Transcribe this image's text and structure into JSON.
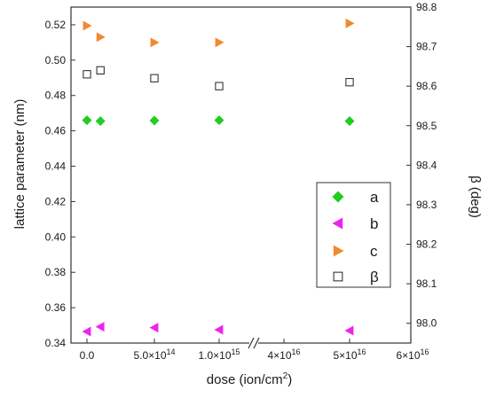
{
  "chart_data": {
    "type": "scatter",
    "xlabel": "dose (ion/cm",
    "xlabel_sup": "2",
    "xlabel_suffix": ")",
    "ylabel_left": "lattice parameter (nm)",
    "ylabel_right": "β (deg)",
    "x_ticks": [
      {
        "pos": 0,
        "label": "0.0"
      },
      {
        "pos": 1,
        "label": "5.0×10",
        "sup": "14"
      },
      {
        "pos": 2,
        "label": "1.0×10",
        "sup": "15"
      },
      {
        "pos": 3,
        "label": "4×10",
        "sup": "16"
      },
      {
        "pos": 4,
        "label": "5×10",
        "sup": "16"
      },
      {
        "pos": 5,
        "label": "6×10",
        "sup": "16"
      }
    ],
    "x_axis_break": true,
    "ylim_left": [
      0.34,
      0.53
    ],
    "yticks_left": [
      "0.34",
      "0.36",
      "0.38",
      "0.40",
      "0.42",
      "0.44",
      "0.46",
      "0.48",
      "0.50",
      "0.52"
    ],
    "ylim_right": [
      97.95,
      98.8
    ],
    "yticks_right": [
      "98.0",
      "98.1",
      "98.2",
      "98.3",
      "98.4",
      "98.5",
      "98.6",
      "98.7",
      "98.8"
    ],
    "series": [
      {
        "name": "a",
        "axis": "left",
        "marker": "diamond",
        "color": "#22cc22",
        "points": [
          [
            0,
            0.466
          ],
          [
            0.2,
            0.4655
          ],
          [
            1,
            0.4658
          ],
          [
            2,
            0.466
          ],
          [
            4,
            0.4655
          ]
        ]
      },
      {
        "name": "b",
        "axis": "left",
        "marker": "triangle-left",
        "color": "#ee22ee",
        "points": [
          [
            0,
            0.3465
          ],
          [
            0.2,
            0.3492
          ],
          [
            1,
            0.3487
          ],
          [
            2,
            0.3475
          ],
          [
            4,
            0.347
          ]
        ]
      },
      {
        "name": "c",
        "axis": "left",
        "marker": "triangle-right",
        "color": "#f08a30",
        "points": [
          [
            0,
            0.5195
          ],
          [
            0.2,
            0.513
          ],
          [
            1,
            0.51
          ],
          [
            2,
            0.51
          ],
          [
            4,
            0.5208
          ]
        ]
      },
      {
        "name": "β",
        "axis": "right",
        "marker": "square-open",
        "color": "#222222",
        "points": [
          [
            0,
            98.63
          ],
          [
            0.2,
            98.64
          ],
          [
            1,
            98.62
          ],
          [
            2,
            98.6
          ],
          [
            4,
            98.61
          ]
        ]
      }
    ],
    "legend_position": "right"
  }
}
